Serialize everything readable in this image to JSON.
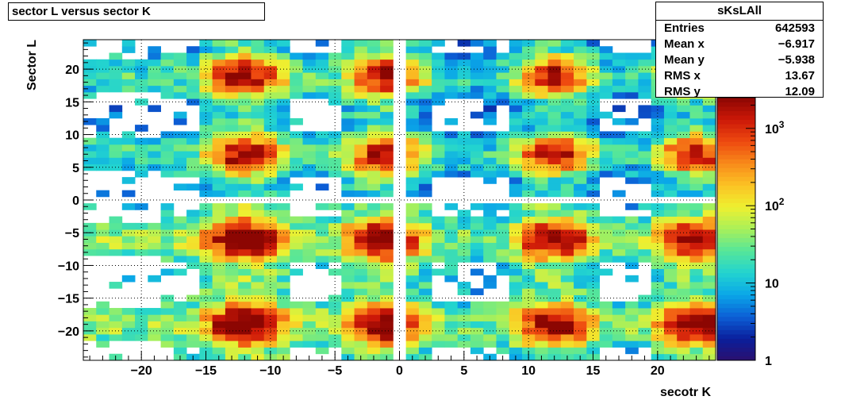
{
  "chart_data": {
    "type": "heatmap",
    "title": "sector L versus sector K",
    "xlabel": "secotr K",
    "ylabel": "Sector L",
    "xlim": [
      -24.5,
      24.5
    ],
    "ylim": [
      -24.5,
      24.5
    ],
    "x_ticks": [
      -20,
      -15,
      -10,
      -5,
      0,
      5,
      10,
      15,
      20
    ],
    "x_tick_labels": [
      "−20",
      "−15",
      "−10",
      "−5",
      "0",
      "5",
      "10",
      "15",
      "20"
    ],
    "y_ticks": [
      -20,
      -15,
      -10,
      -5,
      0,
      5,
      10,
      15,
      20
    ],
    "y_tick_labels": [
      "−20",
      "−15",
      "−10",
      "−5",
      "0",
      "5",
      "10",
      "15",
      "20"
    ],
    "grid": true,
    "z_scale": "log",
    "zlim": [
      1,
      2500
    ],
    "z_ticks": [
      1,
      10,
      100,
      1000
    ],
    "z_tick_labels": [
      {
        "base": "1",
        "sup": ""
      },
      {
        "base": "10",
        "sup": ""
      },
      {
        "base": "10",
        "sup": "2"
      },
      {
        "base": "10",
        "sup": "3"
      }
    ],
    "colormap": [
      "#2b0f6e",
      "#0a1f9c",
      "#0c5fd6",
      "#0aa6e8",
      "#22d3d0",
      "#55e69a",
      "#a8f05a",
      "#eef030",
      "#fbc324",
      "#f88a1a",
      "#ee4a10",
      "#cc1808",
      "#8c0602"
    ],
    "structure": {
      "k_clusters": [
        -12,
        -1,
        12,
        23
      ],
      "l_clusters": [
        -19,
        -6,
        7,
        19
      ],
      "note": "binned counts over sector K in [-24,24] and sector L in [-24,24]; band structure at K clusters and L clusters, empty column at K=0 and empty row at L=0"
    },
    "stats": {
      "name": "sKsLAll",
      "rows": [
        {
          "label": "Entries",
          "value": "642593"
        },
        {
          "label": "Mean x",
          "value": "−6.917"
        },
        {
          "label": "Mean y",
          "value": "−5.938"
        },
        {
          "label": "RMS x",
          "value": "13.67"
        },
        {
          "label": "RMS y",
          "value": "12.09"
        }
      ]
    }
  }
}
